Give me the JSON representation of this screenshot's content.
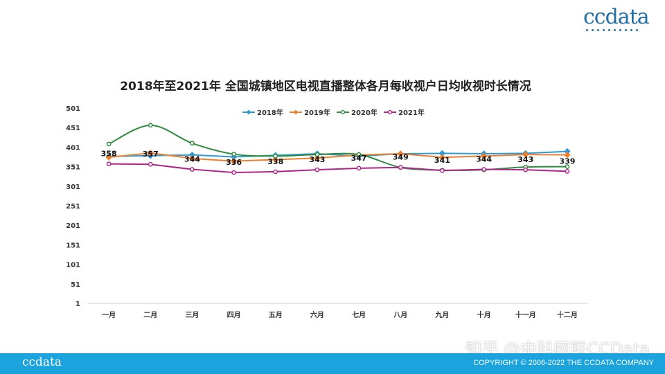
{
  "brand": {
    "logo_text": "ccdata",
    "footer_logo_text": "ccdata"
  },
  "footer": {
    "copyright": "COPYRIGHT © 2006-2022 THE CCDATA COMPANY",
    "bg_color": "#1aa3dc"
  },
  "watermark": "知乎 @中科网联CCData",
  "chart_data": {
    "type": "line",
    "title": "2018年至2021年 全国城镇地区电视直播整体各月每收视户日均收视时长情况",
    "xlabel": "",
    "ylabel": "",
    "ylim": [
      1,
      501
    ],
    "y_ticks": [
      1,
      51,
      101,
      151,
      201,
      251,
      301,
      351,
      401,
      451,
      501
    ],
    "categories": [
      "一月",
      "二月",
      "三月",
      "四月",
      "五月",
      "六月",
      "七月",
      "八月",
      "九月",
      "十月",
      "十一月",
      "十二月"
    ],
    "legend_position": "top",
    "grid": false,
    "series": [
      {
        "name": "2018年",
        "color": "#2e9ad8",
        "marker": "diamond",
        "smooth": false,
        "values": [
          377,
          379,
          381,
          376,
          380,
          384,
          378,
          384,
          385,
          384,
          385,
          390
        ]
      },
      {
        "name": "2019年",
        "color": "#ee7f2d",
        "marker": "diamond",
        "smooth": false,
        "values": [
          375,
          386,
          372,
          365,
          369,
          373,
          381,
          384,
          375,
          378,
          382,
          381
        ]
      },
      {
        "name": "2020年",
        "color": "#2e8b3e",
        "marker": "circle",
        "smooth": true,
        "values": [
          409,
          457,
          411,
          383,
          378,
          382,
          382,
          349,
          342,
          343,
          350,
          351
        ]
      },
      {
        "name": "2021年",
        "color": "#b0238a",
        "marker": "circle",
        "smooth": false,
        "values": [
          358,
          357,
          344,
          336,
          338,
          343,
          347,
          349,
          341,
          344,
          343,
          339
        ]
      }
    ],
    "data_labels": {
      "series": "2021年",
      "values": [
        "358",
        "357",
        "344",
        "336",
        "338",
        "343",
        "347",
        "349",
        "341",
        "344",
        "343",
        "339"
      ]
    }
  }
}
